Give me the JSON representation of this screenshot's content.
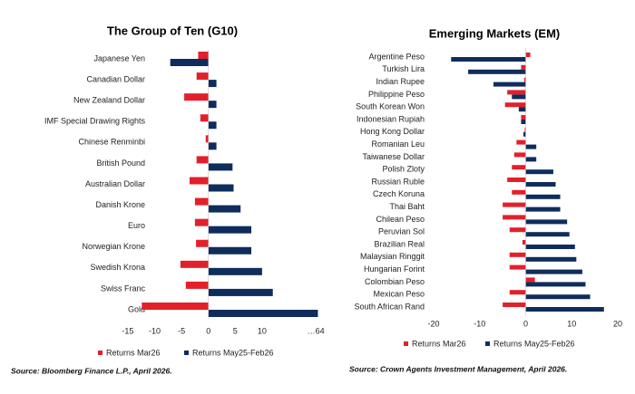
{
  "chart_data": [
    {
      "type": "bar",
      "orientation": "horizontal",
      "title": "The Group of Ten (G10)",
      "categories": [
        "Japanese Yen",
        "Canadian Dollar",
        "New Zealand Dollar",
        "IMF Special Drawing Rights",
        "Chinese Renminbi",
        "British Pound",
        "Australian Dollar",
        "Danish Krone",
        "Euro",
        "Norwegian Krone",
        "Swedish Krona",
        "Swiss Franc",
        "Gold"
      ],
      "series": [
        {
          "name": "Returns Mar26",
          "color": "#e3202a",
          "values": [
            -1.9,
            -2.2,
            -4.5,
            -1.5,
            -0.5,
            -2.2,
            -3.5,
            -2.5,
            -2.5,
            -2.3,
            -5.2,
            -4.2,
            -12.4
          ]
        },
        {
          "name": "Returns May25-Feb26",
          "color": "#0f2d5c",
          "values": [
            -7.1,
            1.5,
            1.5,
            1.5,
            1.5,
            4.5,
            4.7,
            6,
            8,
            8,
            10,
            12,
            20.4
          ]
        }
      ],
      "xlim": [
        -16,
        21
      ],
      "xticks": [
        -15,
        -10,
        -5,
        0,
        5,
        10,
        {
          "value": 20,
          "label": "…64"
        }
      ],
      "source": "Source: Bloomberg Finance L.P., April 2026."
    },
    {
      "type": "bar",
      "orientation": "horizontal",
      "title": "Emerging Markets (EM)",
      "categories": [
        "Argentine Peso",
        "Turkish Lira",
        "Indian Rupee",
        "Philippine Peso",
        "South Korean Won",
        "Indonesian Rupiah",
        "Hong Kong Dollar",
        "Romanian Leu",
        "Taiwanese Dollar",
        "Polish Zloty",
        "Russian Ruble",
        "Czech Koruna",
        "Thai Baht",
        "Chilean Peso",
        "Peruvian Sol",
        "Brazilian Real",
        "Malaysian Ringgit",
        "Hungarian Forint",
        "Colombian Peso",
        "Mexican Peso",
        "South African Rand"
      ],
      "series": [
        {
          "name": "Returns Mar26",
          "color": "#e3202a",
          "values": [
            1,
            -1,
            -0.3,
            -4,
            -4.5,
            -1,
            -0.2,
            -2,
            -2.5,
            -3,
            -4,
            -3,
            -5,
            -5,
            -3.5,
            -0.7,
            -3.5,
            -3.5,
            2,
            -3.5,
            -5
          ]
        },
        {
          "name": "Returns May25-Feb26",
          "color": "#0f2d5c",
          "values": [
            -16.2,
            -12.5,
            -7,
            -3,
            -1.5,
            -1,
            -0.5,
            2.3,
            2.3,
            6,
            6.5,
            7.5,
            7.5,
            9,
            9.5,
            10.7,
            11,
            12.3,
            13,
            14,
            17
          ]
        }
      ],
      "xlim": [
        -20,
        20
      ],
      "xticks": [
        -20,
        -10,
        0,
        10,
        20
      ],
      "source": "Source: Crown Agents Investment Management, April 2026."
    }
  ]
}
